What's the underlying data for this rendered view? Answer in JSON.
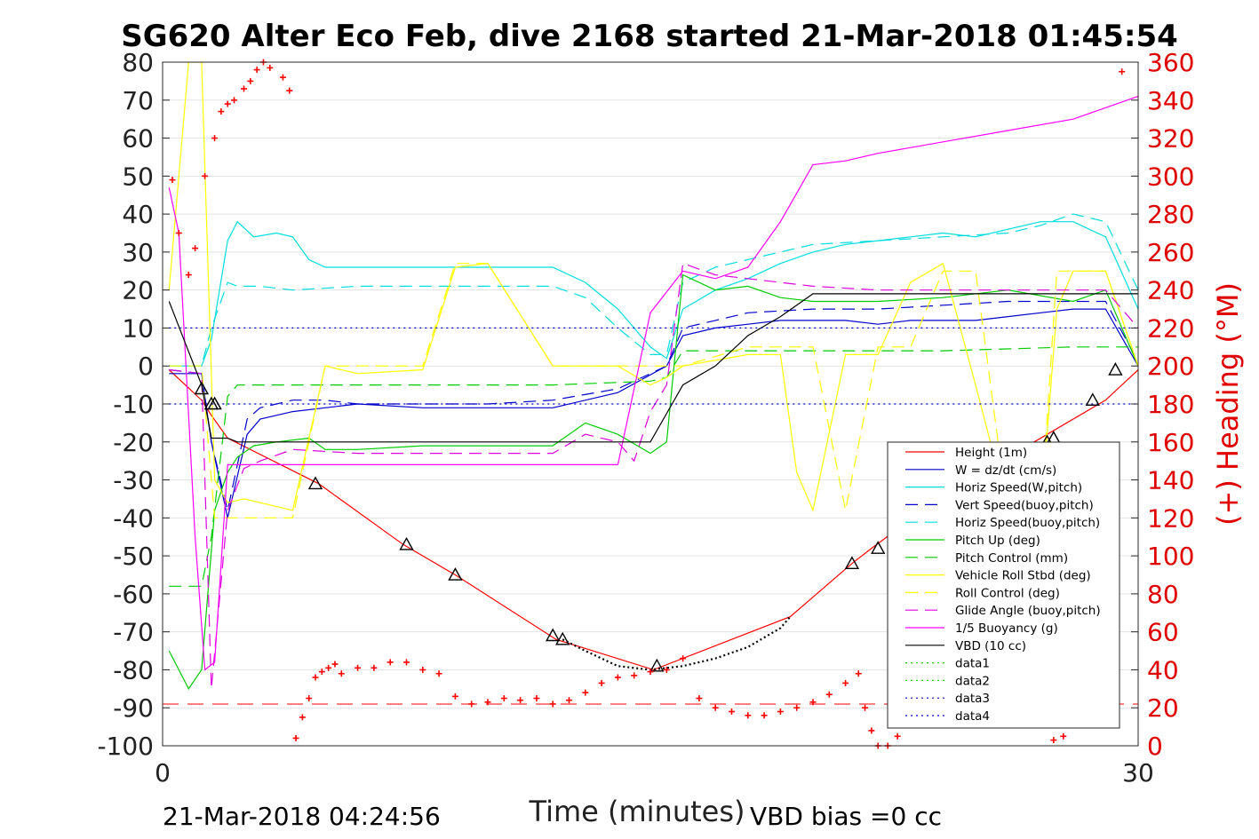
{
  "chart_data": {
    "type": "line",
    "title": "SG620 Alter Eco Feb, dive 2168 started 21-Mar-2018 01:45:54",
    "xlabel": "Time (minutes)",
    "ylabel_right": "(+) Heading (°M)",
    "footer_left": "21-Mar-2018 04:24:56",
    "footer_right": "VBD bias =0 cc",
    "xlim": [
      0,
      30
    ],
    "ylim": [
      -100,
      80
    ],
    "ylim_right": [
      0,
      360
    ],
    "x_ticks": [
      "0",
      "30"
    ],
    "y_ticks": [
      "80",
      "70",
      "60",
      "50",
      "40",
      "30",
      "20",
      "10",
      "0",
      "-10",
      "-20",
      "-30",
      "-40",
      "-50",
      "-60",
      "-70",
      "-80",
      "-90",
      "-100"
    ],
    "y_right_ticks": [
      "360",
      "340",
      "320",
      "300",
      "280",
      "260",
      "240",
      "220",
      "200",
      "180",
      "160",
      "140",
      "120",
      "100",
      "80",
      "60",
      "40",
      "20",
      "0"
    ],
    "grid": true,
    "legend_position": "lower-right",
    "series": [
      {
        "name": "Height (1m)",
        "color": "#ff0000",
        "style": "solid",
        "x": [
          0.2,
          1.2,
          1.5,
          2.0,
          4.8,
          7.4,
          9.0,
          12.1,
          15.1,
          17.5,
          19.3,
          21.2,
          21.8,
          24.0,
          26.8,
          29.0,
          30.0
        ],
        "y": [
          -1,
          -9,
          -13,
          -19,
          -31,
          -47,
          -55,
          -72,
          -80,
          -72,
          -66,
          -52,
          -48,
          -34,
          -20,
          -9,
          -1
        ]
      },
      {
        "name": "W = dz/dt (cm/s)",
        "color": "#0000cc",
        "style": "solid",
        "x": [
          0.2,
          1.2,
          1.5,
          2.0,
          2.6,
          3.0,
          4.0,
          5.0,
          6.0,
          8.0,
          10.0,
          12.0,
          14.0,
          15.5,
          16.0,
          17.0,
          18.0,
          19.0,
          20.0,
          21.0,
          22.0,
          23.0,
          24.0,
          25.0,
          26.0,
          27.0,
          28.0,
          29.0,
          30.0
        ],
        "y": [
          -2,
          -2,
          -20,
          -40,
          -18,
          -14,
          -12,
          -11,
          -10,
          -11,
          -11,
          -11,
          -7,
          0,
          8,
          10,
          11,
          12,
          12,
          12,
          11,
          12,
          12,
          12,
          13,
          14,
          15,
          15,
          0
        ]
      },
      {
        "name": "Horiz Speed(W,pitch)",
        "color": "#00dddd",
        "style": "solid",
        "x": [
          0.2,
          1.2,
          1.5,
          2.0,
          2.3,
          2.8,
          3.5,
          4.0,
          4.5,
          5.0,
          6.0,
          8.0,
          10.0,
          12.0,
          13.0,
          14.0,
          15.0,
          15.5,
          16.0,
          17.0,
          18.0,
          19.0,
          20.0,
          21.0,
          22.0,
          23.0,
          24.0,
          25.0,
          26.0,
          27.0,
          28.0,
          29.0,
          30.0
        ],
        "y": [
          0,
          0,
          7,
          33,
          38,
          34,
          35,
          34,
          28,
          26,
          26,
          26,
          26,
          26,
          22,
          15,
          5,
          2,
          15,
          20,
          23,
          27,
          30,
          32,
          33,
          34,
          35,
          34,
          36,
          38,
          38,
          34,
          15
        ]
      },
      {
        "name": "Vert Speed(buoy,pitch)",
        "color": "#0000cc",
        "style": "dashed",
        "x": [
          0.2,
          1.2,
          1.5,
          2.0,
          2.6,
          3.0,
          4.0,
          5.0,
          6.0,
          8.0,
          10.0,
          12.0,
          14.0,
          15.5,
          16.0,
          17.0,
          18.0,
          20.0,
          22.0,
          24.0,
          26.0,
          28.0,
          29.0,
          30.0
        ],
        "y": [
          -1,
          -2,
          -20,
          -38,
          -14,
          -11,
          -9,
          -9,
          -10,
          -10,
          -10,
          -9,
          -6,
          0,
          10,
          12,
          14,
          15,
          15,
          16,
          17,
          17,
          17,
          1
        ]
      },
      {
        "name": "Horiz Speed(buoy,pitch)",
        "color": "#00dddd",
        "style": "dashed",
        "x": [
          0.2,
          1.2,
          1.5,
          2.0,
          2.3,
          3.0,
          4.0,
          6.0,
          8.0,
          10.0,
          12.0,
          13.0,
          14.0,
          15.0,
          15.5,
          16.0,
          17.0,
          18.0,
          19.0,
          20.0,
          22.0,
          24.0,
          26.0,
          27.0,
          28.0,
          29.0,
          30.0
        ],
        "y": [
          0,
          0,
          10,
          22,
          21,
          21,
          20,
          21,
          21,
          21,
          21,
          18,
          10,
          3,
          3,
          22,
          26,
          28,
          30,
          32,
          33,
          34,
          35,
          37,
          40,
          38,
          20
        ]
      },
      {
        "name": "Pitch Up (deg)",
        "color": "#00cc00",
        "style": "solid",
        "x": [
          0.2,
          0.8,
          1.2,
          1.6,
          2.0,
          2.3,
          2.8,
          3.5,
          4.5,
          5.0,
          6.0,
          8.0,
          10.0,
          12.0,
          13.0,
          14.0,
          15.0,
          15.5,
          16.0,
          17.0,
          18.0,
          19.0,
          20.0,
          22.0,
          24.0,
          26.0,
          28.0,
          29.0,
          30.0
        ],
        "y": [
          -75,
          -85,
          -80,
          -38,
          -28,
          -24,
          -21,
          -20,
          -19,
          -22,
          -22,
          -21,
          -21,
          -21,
          -15,
          -18,
          -23,
          -20,
          24,
          20,
          21,
          18,
          17,
          17,
          18,
          20,
          17,
          20,
          0
        ]
      },
      {
        "name": "Pitch Control (mm)",
        "color": "#00cc00",
        "style": "dashed",
        "x": [
          0.2,
          1.2,
          1.5,
          2.0,
          2.3,
          4.0,
          8.0,
          12.0,
          15.0,
          15.5,
          16.0,
          20.0,
          24.0,
          28.0,
          30.0
        ],
        "y": [
          -58,
          -58,
          -45,
          -8,
          -5,
          -5,
          -5,
          -5,
          -4,
          -3,
          4,
          4,
          4,
          5,
          5
        ]
      },
      {
        "name": "Vehicle Roll Stbd (deg)",
        "color": "#ffff00",
        "style": "solid",
        "x": [
          0.2,
          0.8,
          1.2,
          1.6,
          2.0,
          2.5,
          3.0,
          4.0,
          5.0,
          6.0,
          8.0,
          9.0,
          10.0,
          12.0,
          14.0,
          15.0,
          15.5,
          16.0,
          18.0,
          19.0,
          19.5,
          20.0,
          21.0,
          22.0,
          23.0,
          24.0,
          25.0,
          26.0,
          27.0,
          27.5,
          28.0,
          28.5,
          29.0,
          30.0
        ],
        "y": [
          20,
          80,
          80,
          -30,
          -36,
          -35,
          -36,
          -38,
          0,
          -2,
          -1,
          26,
          27,
          0,
          0,
          -5,
          -3,
          0,
          3,
          3,
          -28,
          -38,
          3,
          3,
          22,
          27,
          -5,
          -38,
          -40,
          15,
          25,
          25,
          25,
          0
        ]
      },
      {
        "name": "Roll Control (deg)",
        "color": "#ffff00",
        "style": "dashed",
        "x": [
          0.2,
          1.2,
          1.6,
          2.0,
          3.0,
          4.0,
          5.0,
          6.0,
          8.0,
          9.0,
          10.0,
          12.0,
          14.0,
          15.0,
          16.0,
          18.0,
          20.0,
          21.0,
          22.0,
          23.0,
          24.0,
          25.0,
          26.0,
          27.0,
          27.5,
          28.0,
          29.0,
          30.0
        ],
        "y": [
          0,
          0,
          -40,
          -40,
          -40,
          -40,
          0,
          0,
          0,
          27,
          27,
          0,
          0,
          0,
          0,
          5,
          5,
          -38,
          5,
          5,
          25,
          25,
          -40,
          -40,
          25,
          25,
          25,
          0
        ]
      },
      {
        "name": "Glide Angle (buoy,pitch)",
        "color": "#dd00dd",
        "style": "dashed",
        "x": [
          0.2,
          1.2,
          1.5,
          2.0,
          2.5,
          3.0,
          4.0,
          6.0,
          8.0,
          10.0,
          12.0,
          13.0,
          14.0,
          14.5,
          15.0,
          15.5,
          16.0,
          17.0,
          18.0,
          20.0,
          22.0,
          24.0,
          26.0,
          28.0,
          29.0,
          30.0
        ],
        "y": [
          -1,
          -2,
          -85,
          -38,
          -27,
          -25,
          -22,
          -23,
          -23,
          -23,
          -23,
          -18,
          -20,
          -25,
          -12,
          -5,
          27,
          24,
          23,
          21,
          20,
          20,
          20,
          20,
          20,
          10
        ]
      },
      {
        "name": "1/5 Buoyancy (g)",
        "color": "#ff00ff",
        "style": "solid",
        "x": [
          0.2,
          0.5,
          1.0,
          1.3,
          1.6,
          2.0,
          2.3,
          3.0,
          5.0,
          8.0,
          12.0,
          14.0,
          15.0,
          16.0,
          17.0,
          18.0,
          19.0,
          20.0,
          21.0,
          22.0,
          24.0,
          26.0,
          28.0,
          30.0
        ],
        "y": [
          47,
          35,
          -45,
          -80,
          -78,
          -26,
          -26,
          -26,
          -26,
          -26,
          -26,
          -26,
          14,
          25,
          23,
          26,
          38,
          53,
          54,
          56,
          59,
          62,
          65,
          71
        ]
      },
      {
        "name": "VBD (10 cc)",
        "color": "#000000",
        "style": "solid",
        "x": [
          0.2,
          1.2,
          1.5,
          2.0,
          2.3,
          4.0,
          8.0,
          12.0,
          14.0,
          15.0,
          16.0,
          17.0,
          18.0,
          19.0,
          20.0,
          24.0,
          28.0,
          30.0
        ],
        "y": [
          17,
          -5,
          -19,
          -19,
          -20,
          -20,
          -20,
          -20,
          -20,
          -20,
          -5,
          0,
          8,
          13,
          19,
          19,
          19,
          19
        ]
      },
      {
        "name": "data1",
        "color": "#00cc00",
        "style": "dotted",
        "x": [],
        "y": []
      },
      {
        "name": "data2",
        "color": "#00cc00",
        "style": "dotted",
        "x": [],
        "y": []
      },
      {
        "name": "data3",
        "color": "#0000cc",
        "style": "dotted",
        "x": [
          0.2,
          30.0
        ],
        "y": [
          10,
          10
        ]
      },
      {
        "name": "data4",
        "color": "#0000cc",
        "style": "dotted",
        "x": [
          0.2,
          30.0
        ],
        "y": [
          -10,
          -10
        ]
      }
    ],
    "height_dotted_segment": {
      "color": "#000000",
      "x": [
        12.3,
        13.0,
        14.0,
        15.0,
        16.0,
        17.0,
        18.0,
        19.0,
        19.3
      ],
      "y": [
        -72,
        -75,
        -79,
        -80,
        -79,
        -77,
        -74,
        -69,
        -66
      ]
    },
    "height_markers": {
      "marker": "triangle",
      "x": [
        1.2,
        1.5,
        1.6,
        4.7,
        7.5,
        9.0,
        12.0,
        12.3,
        15.2,
        21.2,
        22.0,
        23.6,
        24.5,
        26.0,
        27.2,
        27.4,
        28.6,
        29.3
      ],
      "y": [
        -6,
        -10,
        -10,
        -31,
        -47,
        -55,
        -71,
        -72,
        -79,
        -52,
        -48,
        -40,
        -34,
        -26,
        -20,
        -19,
        -9,
        -1
      ]
    },
    "heading": {
      "axis": "right",
      "color": "#ff0000",
      "marker": "+",
      "x": [
        0.3,
        0.5,
        0.8,
        1.0,
        1.3,
        1.6,
        1.8,
        2.0,
        2.2,
        2.5,
        2.7,
        2.9,
        3.1,
        3.3,
        3.5,
        3.7,
        3.9,
        4.1,
        4.3,
        4.5,
        4.7,
        4.9,
        5.1,
        5.3,
        5.5,
        6.0,
        6.5,
        7.0,
        7.5,
        8.0,
        8.5,
        9.0,
        9.5,
        10.0,
        10.5,
        11.0,
        11.5,
        12.0,
        12.5,
        13.0,
        13.5,
        14.0,
        14.5,
        15.0,
        15.5,
        16.0,
        16.5,
        17.0,
        17.5,
        18.0,
        18.5,
        19.0,
        19.5,
        20.0,
        20.5,
        21.0,
        21.4,
        21.6,
        21.8,
        22.0,
        22.3,
        22.6,
        22.9,
        23.2,
        23.5,
        23.8,
        24.1,
        24.4,
        24.7,
        25.0,
        25.3,
        25.6,
        25.9,
        26.2,
        26.5,
        26.8,
        27.1,
        27.4,
        27.7,
        28.0,
        28.3,
        28.6,
        28.9,
        29.2,
        29.5
      ],
      "y": [
        298,
        270,
        248,
        262,
        300,
        320,
        334,
        338,
        340,
        346,
        350,
        356,
        360,
        357,
        362,
        352,
        345,
        4,
        15,
        25,
        36,
        39,
        41,
        43,
        38,
        41,
        41,
        44,
        44,
        40,
        38,
        26,
        22,
        23,
        25,
        24,
        25,
        22,
        24,
        28,
        33,
        36,
        37,
        39,
        40,
        46,
        25,
        20,
        18,
        16,
        16,
        18,
        20,
        23,
        27,
        33,
        38,
        20,
        8,
        0,
        0,
        5,
        13,
        20,
        40,
        45,
        51,
        59,
        62,
        67,
        66,
        63,
        58,
        55,
        40,
        30,
        19,
        3,
        5,
        20,
        28,
        36,
        38,
        34,
        355
      ]
    },
    "heading_reference": {
      "axis": "right",
      "color": "#ff0000",
      "style": "dashed",
      "value": 22
    }
  }
}
